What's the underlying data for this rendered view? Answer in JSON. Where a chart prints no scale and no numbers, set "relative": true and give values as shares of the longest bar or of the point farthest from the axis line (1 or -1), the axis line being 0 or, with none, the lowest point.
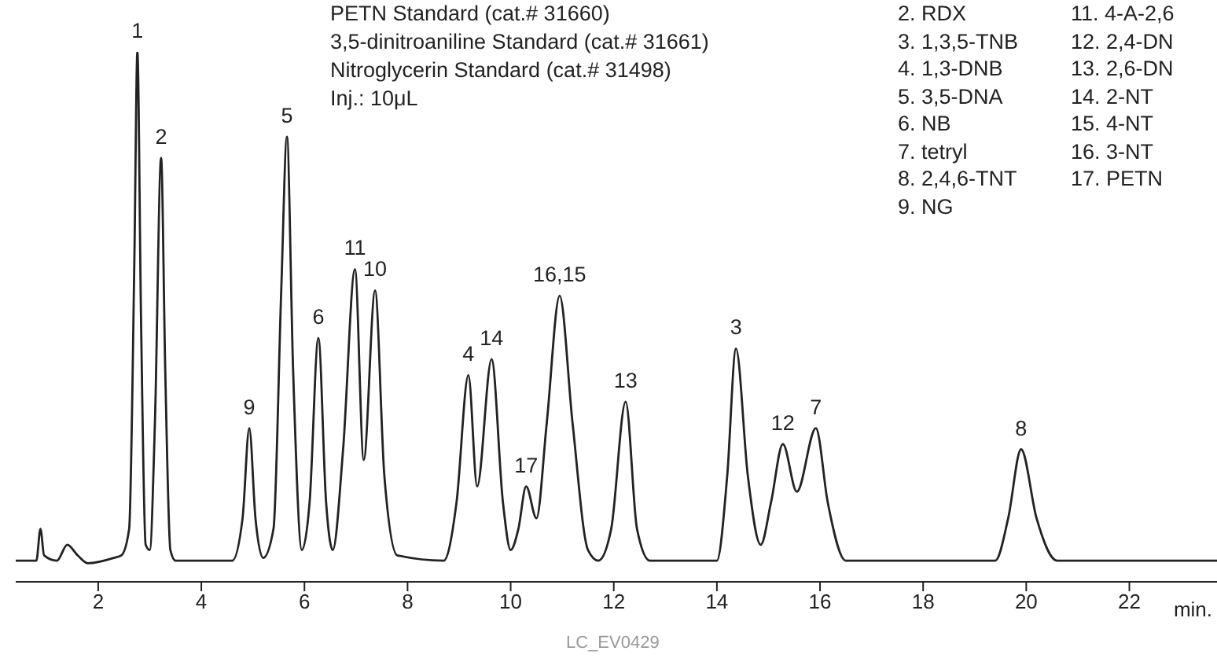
{
  "chart_data": {
    "type": "line",
    "relative": true,
    "xlabel": "min.",
    "xlim": [
      0.4,
      23.7
    ],
    "xticks": [
      2,
      4,
      6,
      8,
      10,
      12,
      14,
      16,
      18,
      20,
      22
    ],
    "x": [
      0.4,
      0.8,
      0.88,
      0.95,
      1.2,
      1.4,
      1.6,
      1.8,
      2.3,
      2.45,
      2.6,
      2.7,
      2.76,
      2.83,
      2.92,
      3.0,
      3.1,
      3.22,
      3.3,
      3.4,
      3.5,
      4.6,
      4.8,
      4.93,
      5.05,
      5.2,
      5.4,
      5.55,
      5.66,
      5.78,
      5.95,
      6.1,
      6.27,
      6.42,
      6.55,
      6.75,
      6.98,
      7.15,
      7.37,
      7.55,
      7.8,
      8.7,
      8.95,
      9.18,
      9.35,
      9.63,
      9.85,
      10.0,
      10.15,
      10.3,
      10.5,
      10.7,
      10.95,
      11.2,
      11.5,
      11.7,
      11.95,
      12.23,
      12.45,
      12.7,
      14.0,
      14.2,
      14.37,
      14.6,
      14.85,
      15.05,
      15.28,
      15.55,
      15.92,
      16.15,
      16.5,
      19.4,
      19.65,
      19.9,
      20.2,
      20.6,
      23.7
    ],
    "series": [
      {
        "color": "#222222",
        "values": [
          0.04,
          0.04,
          0.1,
          0.05,
          0.04,
          0.07,
          0.05,
          0.035,
          0.045,
          0.05,
          0.1,
          0.6,
          1.0,
          0.5,
          0.07,
          0.06,
          0.3,
          0.8,
          0.4,
          0.06,
          0.04,
          0.04,
          0.12,
          0.29,
          0.12,
          0.045,
          0.1,
          0.55,
          0.84,
          0.4,
          0.06,
          0.15,
          0.46,
          0.15,
          0.06,
          0.25,
          0.59,
          0.23,
          0.55,
          0.2,
          0.05,
          0.04,
          0.15,
          0.39,
          0.18,
          0.42,
          0.15,
          0.06,
          0.1,
          0.18,
          0.12,
          0.3,
          0.54,
          0.3,
          0.06,
          0.04,
          0.1,
          0.34,
          0.1,
          0.04,
          0.04,
          0.2,
          0.44,
          0.2,
          0.07,
          0.15,
          0.26,
          0.17,
          0.29,
          0.15,
          0.04,
          0.04,
          0.12,
          0.25,
          0.12,
          0.04,
          0.04
        ]
      }
    ],
    "marker": "none",
    "annotations": [
      "PETN Standard (cat.# 31660)",
      "3,5-dinitroaniline Standard (cat.# 31661)",
      "Nitroglycerin Standard (cat.# 31498)",
      "Inj.: 10μL",
      "2. RDX",
      "3. 1,3,5-TNB",
      "4. 1,3-DNB",
      "5. 3,5-DNA",
      "6. NB",
      "7. tetryl",
      "8. 2,4,6-TNT",
      "9. NG",
      "11. 4-A-2,6",
      "12. 2,4-DN",
      "13. 2,6-DN",
      "14. 2-NT",
      "15. 4-NT",
      "16. 3-NT",
      "17. PETN",
      "LC_EV0429",
      {
        "text": "1",
        "x": 2.76,
        "y": 1.0
      },
      {
        "text": "2",
        "x": 3.22,
        "y": 0.8
      },
      {
        "text": "9",
        "x": 4.93,
        "y": 0.29
      },
      {
        "text": "5",
        "x": 5.66,
        "y": 0.84
      },
      {
        "text": "6",
        "x": 6.27,
        "y": 0.46
      },
      {
        "text": "11",
        "x": 6.98,
        "y": 0.59
      },
      {
        "text": "10",
        "x": 7.37,
        "y": 0.55
      },
      {
        "text": "4",
        "x": 9.18,
        "y": 0.39
      },
      {
        "text": "14",
        "x": 9.63,
        "y": 0.42
      },
      {
        "text": "17",
        "x": 10.3,
        "y": 0.18
      },
      {
        "text": "16,15",
        "x": 10.95,
        "y": 0.54
      },
      {
        "text": "13",
        "x": 12.23,
        "y": 0.34
      },
      {
        "text": "3",
        "x": 14.37,
        "y": 0.44
      },
      {
        "text": "12",
        "x": 15.28,
        "y": 0.26
      },
      {
        "text": "7",
        "x": 15.92,
        "y": 0.29
      },
      {
        "text": "8",
        "x": 19.9,
        "y": 0.25
      }
    ]
  }
}
